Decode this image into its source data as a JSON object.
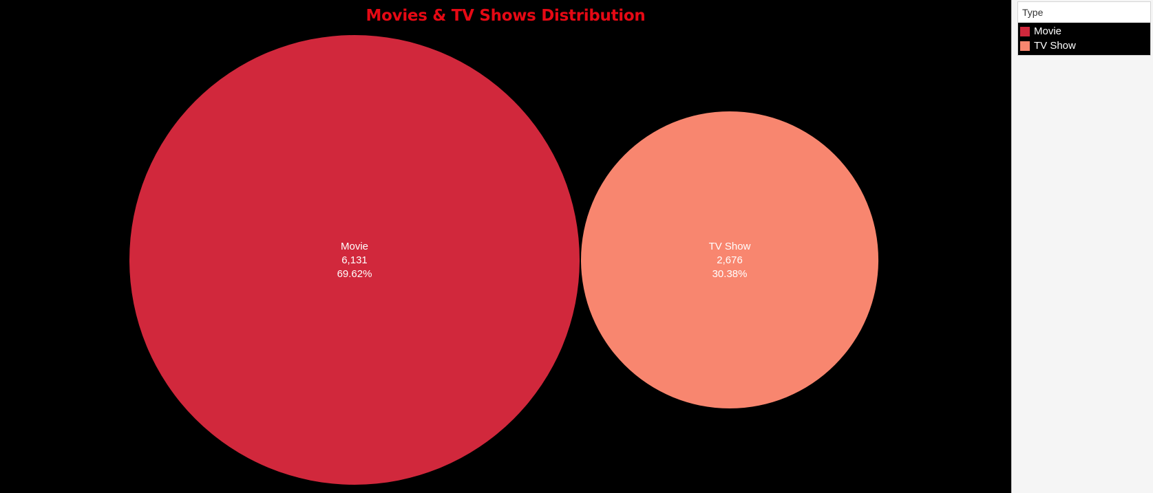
{
  "chart_data": {
    "type": "bubble",
    "title": "Movies & TV Shows Distribution",
    "categories": [
      "Movie",
      "TV Show"
    ],
    "values": [
      6131,
      2676
    ],
    "value_labels": [
      "6,131",
      "2,676"
    ],
    "percent_labels": [
      "69.62%",
      "30.38%"
    ],
    "colors": [
      "#d1283c",
      "#f8866f"
    ],
    "background": "#000000",
    "title_color": "#e50914",
    "legend_position": "top-right"
  },
  "legend": {
    "title": "Type",
    "items": [
      {
        "label": "Movie",
        "color": "#d1283c"
      },
      {
        "label": "TV Show",
        "color": "#f8866f"
      }
    ]
  }
}
